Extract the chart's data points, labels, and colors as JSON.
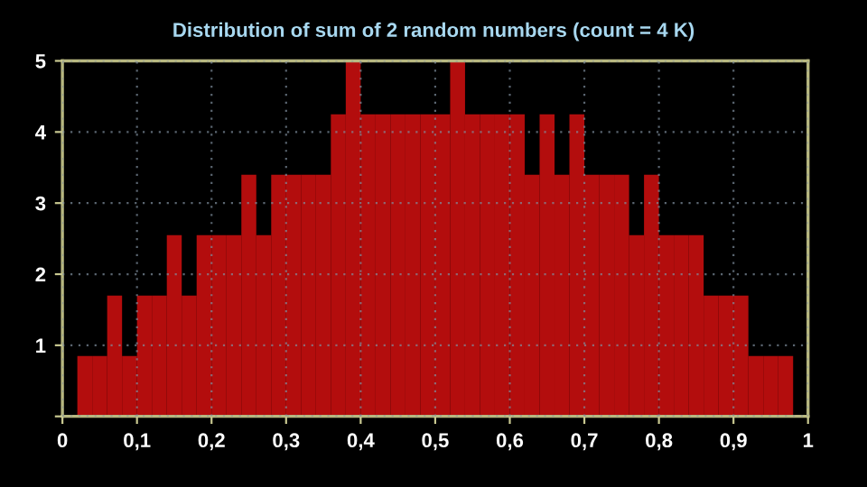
{
  "chart_data": {
    "type": "histogram",
    "title": "Distribution of sum of 2 random numbers (count = 4 K)",
    "bins": [
      0,
      0.02,
      0.04,
      0.06,
      0.08,
      0.1,
      0.12,
      0.14,
      0.16,
      0.18,
      0.2,
      0.22,
      0.24,
      0.26,
      0.28,
      0.3,
      0.32,
      0.34,
      0.36,
      0.38,
      0.4,
      0.42,
      0.44,
      0.46,
      0.48,
      0.5,
      0.52,
      0.54,
      0.56,
      0.58,
      0.6,
      0.62,
      0.64,
      0.66,
      0.68,
      0.7,
      0.72,
      0.74,
      0.76,
      0.78,
      0.8,
      0.82,
      0.84,
      0.86,
      0.88,
      0.9,
      0.92,
      0.94,
      0.96,
      0.98,
      1
    ],
    "values": [
      0,
      0.85,
      0.85,
      1.7,
      0.85,
      1.7,
      1.7,
      2.55,
      1.7,
      2.55,
      2.55,
      2.55,
      3.4,
      2.55,
      3.4,
      3.4,
      3.4,
      3.4,
      4.25,
      5,
      4.25,
      4.25,
      4.25,
      4.25,
      4.25,
      4.25,
      5,
      4.25,
      4.25,
      4.25,
      4.25,
      3.4,
      4.25,
      3.4,
      4.25,
      3.4,
      3.4,
      3.4,
      2.55,
      3.4,
      2.55,
      2.55,
      2.55,
      1.7,
      1.7,
      1.7,
      0.85,
      0.85,
      0.85,
      0
    ],
    "color": "#e01010",
    "xlim": [
      0,
      1
    ],
    "xticks": [
      0,
      {
        "value": 0.1,
        "label": "0,1"
      },
      {
        "value": 0.2,
        "label": "0,2"
      },
      {
        "value": 0.3,
        "label": "0,3"
      },
      {
        "value": 0.4,
        "label": "0,4"
      },
      {
        "value": 0.5,
        "label": "0,5"
      },
      {
        "value": 0.6,
        "label": "0,6"
      },
      {
        "value": 0.7,
        "label": "0,7"
      },
      {
        "value": 0.8,
        "label": "0,8"
      },
      {
        "value": 0.9,
        "label": "0,9"
      },
      1
    ],
    "ylim": [
      0,
      5
    ],
    "yticks": [
      {
        "value": 0,
        "label": null
      },
      1,
      2,
      3,
      4,
      5
    ],
    "grid": true
  }
}
